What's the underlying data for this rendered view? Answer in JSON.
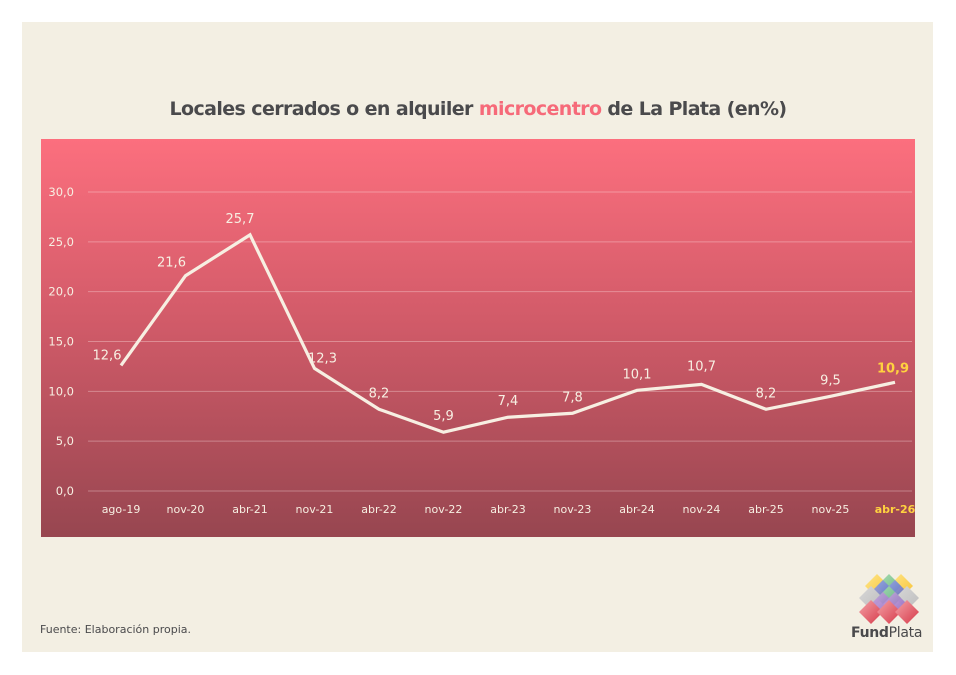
{
  "chart_data": {
    "type": "line",
    "title_parts": {
      "before": "Locales cerrados o en alquiler ",
      "highlight": "microcentro",
      "after": " de La Plata (en%)"
    },
    "title": "Locales cerrados o en alquiler microcentro de La Plata (en%)",
    "xlabel": "",
    "ylabel": "",
    "ylim": [
      0,
      30
    ],
    "y_ticks": [
      {
        "value": 0,
        "label": "0,0"
      },
      {
        "value": 5,
        "label": "5,0"
      },
      {
        "value": 10,
        "label": "10,0"
      },
      {
        "value": 15,
        "label": "15,0"
      },
      {
        "value": 20,
        "label": "20,0"
      },
      {
        "value": 25,
        "label": "25,0"
      },
      {
        "value": 30,
        "label": "30,0"
      }
    ],
    "grid": true,
    "legend": "none",
    "categories": [
      "ago-19",
      "nov-20",
      "abr-21",
      "nov-21",
      "abr-22",
      "nov-22",
      "abr-23",
      "nov-23",
      "abr-24",
      "nov-24",
      "abr-25",
      "nov-25",
      "abr-26"
    ],
    "series": [
      {
        "name": "Locales cerrados o en alquiler (%)",
        "values": [
          12.6,
          21.6,
          25.7,
          12.3,
          8.2,
          5.9,
          7.4,
          7.8,
          10.1,
          10.7,
          8.2,
          9.5,
          10.9
        ],
        "labels": [
          "12,6",
          "21,6",
          "25,7",
          "12,3",
          "8,2",
          "5,9",
          "7,4",
          "7,8",
          "10,1",
          "10,7",
          "8,2",
          "9,5",
          "10,9"
        ]
      }
    ],
    "highlight_index": 12
  },
  "colors": {
    "line": "#F7EFE2",
    "text_light": "#F7EFE2",
    "highlight": "#FFD23F",
    "grid": "rgba(255,235,235,0.35)"
  },
  "footer": {
    "source": "Fuente: Elaboración propia."
  },
  "logo": {
    "name_bold": "Fund",
    "name_regular": "Plata"
  }
}
